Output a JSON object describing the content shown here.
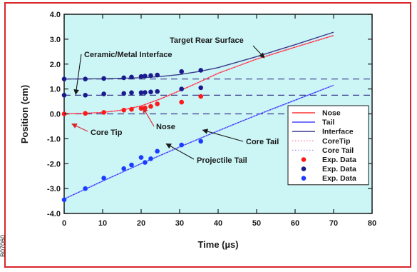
{
  "side_code": "B07060",
  "chart_data": {
    "type": "line",
    "title": "",
    "xlabel": "Time (µs)",
    "ylabel": "Position (cm)",
    "xlim": [
      0,
      80
    ],
    "ylim": [
      -4.0,
      4.0
    ],
    "x_ticks": [
      "0",
      "10",
      "20",
      "30",
      "40",
      "50",
      "60",
      "70",
      "80"
    ],
    "y_ticks": [
      "-4.0",
      "-3.0",
      "-2.0",
      "-1.0",
      "0.0",
      "1.0",
      "2.0",
      "3.0",
      "4.0"
    ],
    "grid": false,
    "background": "#ccf5f5",
    "legend_position": "bottom-right",
    "reference_lines": [
      {
        "y": 1.4,
        "style": "dashed",
        "color": "#3a3a8c"
      },
      {
        "y": 0.75,
        "style": "dashed",
        "color": "#3a3a8c"
      },
      {
        "y": 0.0,
        "style": "dashed",
        "color": "#3a3a8c"
      }
    ],
    "series": [
      {
        "name": "Nose",
        "kind": "line",
        "color": "#ff3030",
        "x": [
          0,
          5,
          10,
          15,
          20,
          25,
          30,
          35,
          40,
          50,
          60,
          70
        ],
        "y": [
          0.0,
          0.02,
          0.06,
          0.15,
          0.32,
          0.6,
          0.93,
          1.27,
          1.63,
          2.2,
          2.68,
          3.15
        ]
      },
      {
        "name": "Tail",
        "kind": "line",
        "color": "#3535ff",
        "x": [
          0,
          10,
          20,
          30,
          40,
          50,
          60,
          70
        ],
        "y": [
          -3.42,
          -2.7,
          -2.0,
          -1.33,
          -0.68,
          -0.05,
          0.55,
          1.15
        ]
      },
      {
        "name": "Interface",
        "kind": "line",
        "color": "#3a3a8c",
        "x": [
          0,
          10,
          20,
          25,
          30,
          35,
          40,
          50,
          60,
          70
        ],
        "y": [
          1.4,
          1.41,
          1.45,
          1.5,
          1.58,
          1.7,
          1.86,
          2.3,
          2.78,
          3.28
        ]
      },
      {
        "name": "CoreTip",
        "kind": "line",
        "style": "dotted",
        "color": "#ff77bb",
        "x": [
          0,
          5,
          10,
          15,
          20,
          25,
          30,
          35,
          40,
          50,
          60,
          70
        ],
        "y": [
          0.0,
          0.02,
          0.06,
          0.15,
          0.32,
          0.6,
          0.93,
          1.27,
          1.63,
          2.2,
          2.68,
          3.15
        ]
      },
      {
        "name": "Core Tail",
        "kind": "line",
        "style": "dotted",
        "color": "#9a9aff",
        "x": [
          0,
          10,
          20,
          30,
          40,
          50,
          60,
          70
        ],
        "y": [
          -3.42,
          -2.7,
          -2.0,
          -1.33,
          -0.68,
          -0.05,
          0.55,
          1.15
        ]
      },
      {
        "name": "Exp. Data",
        "kind": "scatter",
        "color": "#ff1a1a",
        "x": [
          0,
          5.5,
          10.3,
          15.5,
          17.5,
          20.0,
          21.0,
          22.5,
          24.2,
          30.5,
          35.5
        ],
        "y": [
          0.0,
          0.02,
          0.06,
          0.15,
          0.18,
          0.22,
          0.24,
          0.3,
          0.4,
          0.47,
          0.7
        ]
      },
      {
        "name": "Exp. Data",
        "kind": "scatter",
        "color": "#1a1a8c",
        "x": [
          0,
          0,
          5.5,
          5.5,
          10.3,
          10.3,
          15.5,
          15.5,
          17.5,
          17.5,
          20.0,
          20.0,
          21.0,
          21.0,
          22.5,
          22.5,
          24.2,
          24.2,
          30.5,
          30.5,
          35.5,
          35.5
        ],
        "y": [
          1.4,
          0.75,
          1.4,
          0.75,
          1.42,
          0.8,
          1.45,
          0.82,
          1.48,
          0.85,
          1.5,
          0.85,
          1.52,
          0.86,
          1.54,
          0.88,
          1.56,
          0.9,
          1.7,
          1.0,
          1.75,
          1.05
        ]
      },
      {
        "name": "Exp. Data",
        "kind": "scatter",
        "color": "#1a3cff",
        "x": [
          0,
          5.5,
          10.3,
          15.5,
          17.5,
          20.0,
          21.0,
          22.5,
          24.2,
          30.5,
          35.5
        ],
        "y": [
          -3.45,
          -3.0,
          -2.58,
          -2.2,
          -2.05,
          -1.75,
          -1.95,
          -1.8,
          -1.5,
          -1.25,
          -1.1
        ]
      }
    ],
    "annotations": [
      {
        "text": "Target Rear Surface",
        "point": [
          52,
          2.25
        ]
      },
      {
        "text": "Ceramic/Metal Interface",
        "point": [
          3,
          0.78
        ]
      },
      {
        "text": "Core Tip",
        "point": [
          2,
          -0.4
        ]
      },
      {
        "text": "Nose",
        "point": [
          20.5,
          0.25
        ]
      },
      {
        "text": "Core Tail",
        "point": [
          36,
          -0.65
        ]
      },
      {
        "text": "Projectile Tail",
        "point": [
          26.5,
          -1.2
        ]
      }
    ]
  }
}
